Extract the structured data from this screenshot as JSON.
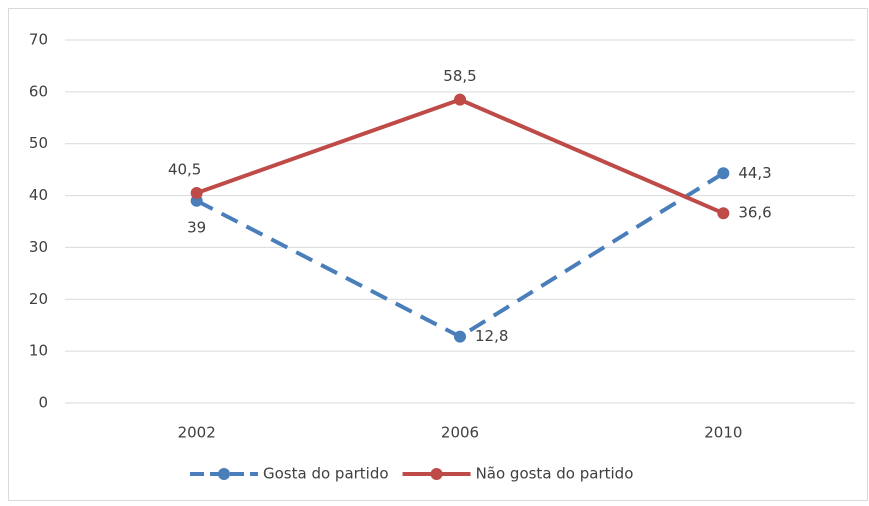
{
  "chart_data": {
    "type": "line",
    "categories": [
      "2002",
      "2006",
      "2010"
    ],
    "series": [
      {
        "name": "Gosta do partido",
        "color": "#4a7ebb",
        "dashed": true,
        "values": [
          39,
          12.8,
          44.3
        ],
        "value_labels": [
          "39",
          "12,8",
          "44,3"
        ]
      },
      {
        "name": "Não gosta do partido",
        "color": "#be4b48",
        "dashed": false,
        "values": [
          40.5,
          58.5,
          36.6
        ],
        "value_labels": [
          "40,5",
          "58,5",
          "36,6"
        ]
      }
    ],
    "ylim": [
      0,
      70
    ],
    "yticks": [
      0,
      10,
      20,
      30,
      40,
      50,
      60,
      70
    ],
    "grid": true,
    "legend": "bottom"
  }
}
